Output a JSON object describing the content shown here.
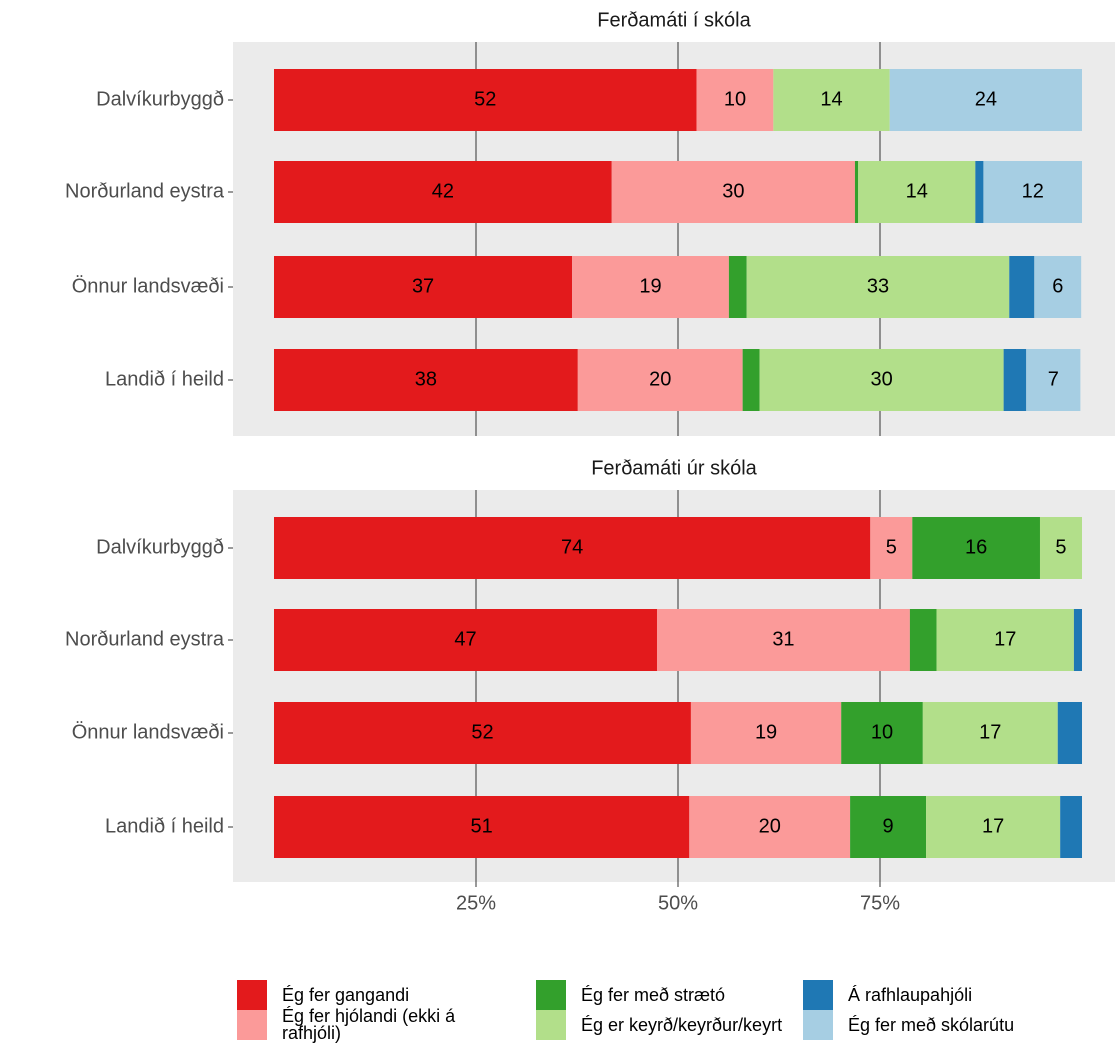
{
  "chart_data": [
    {
      "type": "bar",
      "orientation": "horizontal",
      "stacked": true,
      "title": "Ferðamáti í skóla",
      "categories": [
        "Dalvíkurbyggð",
        "Norðurland eystra",
        "Önnur landsvæði",
        "Landið í heild"
      ],
      "xlim": [
        0,
        100
      ],
      "xticks": [
        {
          "value": 25,
          "label": "25%"
        },
        {
          "value": 50,
          "label": "50%"
        },
        {
          "value": 75,
          "label": "75%"
        }
      ],
      "grid": true,
      "series": [
        {
          "name": "Ég fer gangandi",
          "color": "#e31a1c",
          "values": [
            52.3,
            41.8,
            36.9,
            37.6
          ],
          "value_labels": [
            "52",
            "42",
            "37",
            "38"
          ]
        },
        {
          "name": "Ég fer hjólandi (ekki á rafhjóli)",
          "color": "#fb9a99",
          "values": [
            9.5,
            30.1,
            19.4,
            20.4
          ],
          "value_labels": [
            "10",
            "30",
            "19",
            "20"
          ]
        },
        {
          "name": "Ég fer með strætó",
          "color": "#33a02c",
          "values": [
            0,
            0.4,
            2.2,
            2.1
          ],
          "value_labels": [
            null,
            null,
            null,
            null
          ]
        },
        {
          "name": "Ég er keyrð/keyrður/keyrt",
          "color": "#b2df8a",
          "values": [
            14.4,
            14.5,
            32.5,
            30.2
          ],
          "value_labels": [
            "14",
            "14",
            "33",
            "30"
          ]
        },
        {
          "name": "Á rafhlaupahjóli",
          "color": "#1f78b4",
          "values": [
            0,
            1.0,
            3.1,
            2.8
          ],
          "value_labels": [
            null,
            null,
            null,
            null
          ]
        },
        {
          "name": "Ég fer með skólarútu",
          "color": "#a6cee3",
          "values": [
            23.8,
            12.2,
            5.8,
            6.7
          ],
          "value_labels": [
            "24",
            "12",
            "6",
            "7"
          ]
        }
      ]
    },
    {
      "type": "bar",
      "orientation": "horizontal",
      "stacked": true,
      "title": "Ferðamáti úr skóla",
      "categories": [
        "Dalvíkurbyggð",
        "Norðurland eystra",
        "Önnur landsvæði",
        "Landið í heild"
      ],
      "xlim": [
        0,
        100
      ],
      "xticks": [
        {
          "value": 25,
          "label": "25%"
        },
        {
          "value": 50,
          "label": "50%"
        },
        {
          "value": 75,
          "label": "75%"
        }
      ],
      "grid": true,
      "series": [
        {
          "name": "Ég fer gangandi",
          "color": "#e31a1c",
          "values": [
            73.8,
            47.4,
            51.6,
            51.4
          ],
          "value_labels": [
            "74",
            "47",
            "52",
            "51"
          ]
        },
        {
          "name": "Ég fer hjólandi (ekki á rafhjóli)",
          "color": "#fb9a99",
          "values": [
            5.2,
            31.3,
            18.6,
            19.9
          ],
          "value_labels": [
            "5",
            "31",
            "19",
            "20"
          ]
        },
        {
          "name": "Ég fer með strætó",
          "color": "#33a02c",
          "values": [
            15.8,
            3.3,
            10.1,
            9.4
          ],
          "value_labels": [
            "16",
            null,
            "10",
            "9"
          ]
        },
        {
          "name": "Ég er keyrð/keyrður/keyrt",
          "color": "#b2df8a",
          "values": [
            5.2,
            17.0,
            16.7,
            16.6
          ],
          "value_labels": [
            "5",
            "17",
            "17",
            "17"
          ]
        },
        {
          "name": "Á rafhlaupahjóli",
          "color": "#1f78b4",
          "values": [
            0,
            1.0,
            3.0,
            2.7
          ],
          "value_labels": [
            null,
            null,
            null,
            null
          ]
        }
      ]
    }
  ]
}
